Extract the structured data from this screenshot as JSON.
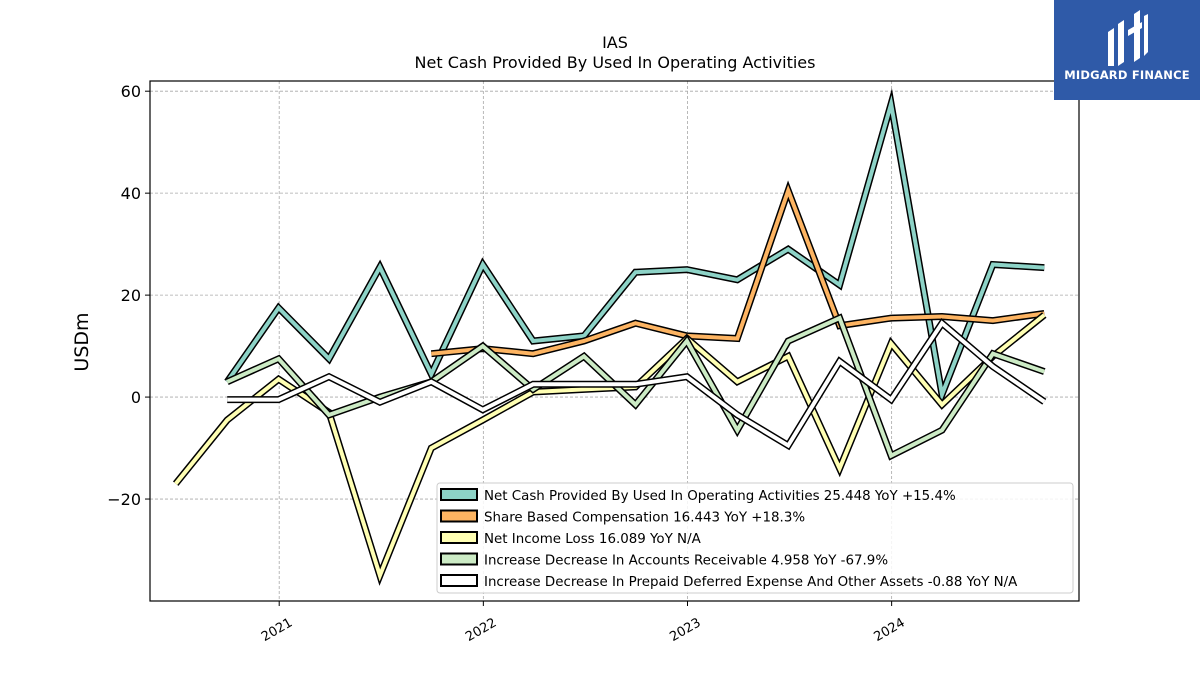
{
  "chart_data": {
    "type": "line",
    "title": "IAS",
    "subtitle": "Net Cash Provided By Used In Operating Activities",
    "xlabel": "",
    "ylabel": "USDm",
    "x_ticks": [
      "2021",
      "2022",
      "2023",
      "2024"
    ],
    "y_ticks": [
      -20,
      0,
      20,
      40,
      60
    ],
    "xlim": [
      "2020-05-15",
      "2024-12-01"
    ],
    "ylim": [
      -40,
      62
    ],
    "grid": true,
    "legend_position": "lower-right",
    "x": [
      "2020-06-30",
      "2020-09-30",
      "2020-12-31",
      "2021-03-31",
      "2021-06-30",
      "2021-09-30",
      "2021-12-31",
      "2022-03-31",
      "2022-06-30",
      "2022-09-30",
      "2022-12-31",
      "2023-03-31",
      "2023-06-30",
      "2023-09-30",
      "2023-12-31",
      "2024-03-31",
      "2024-06-30",
      "2024-09-30"
    ],
    "series": [
      {
        "name": "Net Cash Provided By Used In Operating Activities",
        "legend": "Net Cash Provided By Used In Operating Activities  25.448 YoY +15.4%",
        "color": "#8dd3c7",
        "values": [
          null,
          3.0,
          17.5,
          7.5,
          25.5,
          4.5,
          26.0,
          11.0,
          12.0,
          24.5,
          25.0,
          23.0,
          29.0,
          22.0,
          57.5,
          0.5,
          26.0,
          25.4
        ]
      },
      {
        "name": "Share Based Compensation",
        "legend": "Share Based Compensation  16.443 YoY +18.3%",
        "color": "#fdb462",
        "values": [
          null,
          null,
          null,
          null,
          null,
          8.5,
          9.5,
          8.5,
          11.0,
          14.5,
          12.0,
          11.5,
          40.5,
          14.0,
          15.5,
          15.8,
          15.0,
          16.4
        ]
      },
      {
        "name": "Net Income Loss",
        "legend": "Net Income Loss  16.089 YoY N/A",
        "color": "#ffffb3",
        "values": [
          -17.0,
          -4.5,
          3.5,
          -3.0,
          -35.0,
          -10.0,
          -4.5,
          1.0,
          1.5,
          2.0,
          11.5,
          3.0,
          8.0,
          -14.0,
          10.5,
          -1.5,
          8.0,
          16.1
        ]
      },
      {
        "name": "Increase Decrease In Accounts Receivable",
        "legend": "Increase Decrease In Accounts Receivable  4.958 YoY -67.9%",
        "color": "#ccebc5",
        "values": [
          null,
          3.0,
          7.5,
          -3.5,
          0.0,
          3.0,
          10.0,
          1.5,
          8.0,
          -1.5,
          11.0,
          -6.5,
          11.0,
          15.5,
          -11.5,
          -6.5,
          8.5,
          5.0
        ]
      },
      {
        "name": "Increase Decrease In Prepaid Deferred Expense And Other Assets",
        "legend": "Increase Decrease In Prepaid Deferred Expense And Other Assets  -0.88 YoY N/A",
        "color": "#ffffff",
        "values": [
          null,
          -0.5,
          -0.5,
          4.0,
          -1.0,
          3.0,
          -2.5,
          2.5,
          2.5,
          2.5,
          4.0,
          -3.5,
          -9.5,
          7.0,
          -0.5,
          14.5,
          6.0,
          -0.9
        ]
      }
    ]
  },
  "branding": {
    "logo_text": "MIDGARD FINANCE",
    "logo_icon": "midgard-logo-icon",
    "logo_color": "#2f5aa8"
  }
}
